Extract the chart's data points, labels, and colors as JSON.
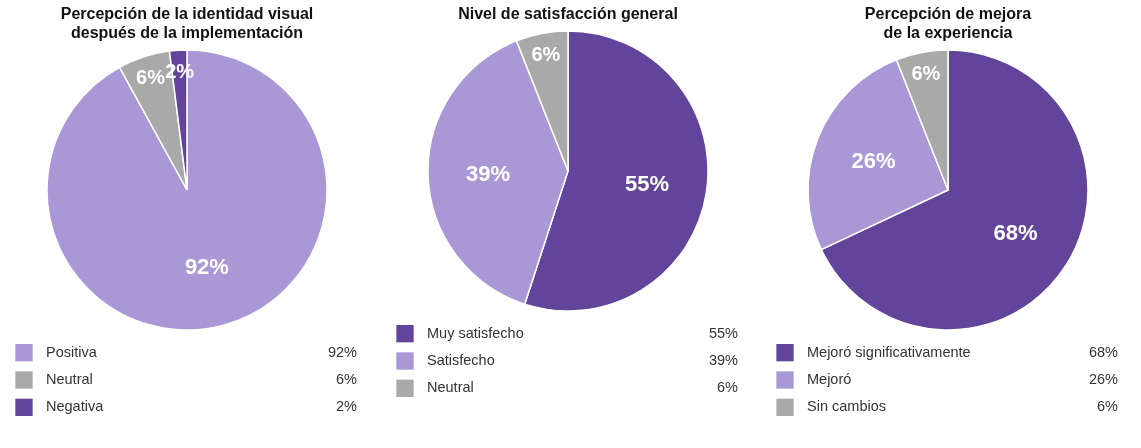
{
  "chart_data": [
    {
      "type": "pie",
      "title": "Percepción de la identidad visual\ndespués de la implementación",
      "categories": [
        "Positiva",
        "Neutral",
        "Negativa"
      ],
      "values": [
        92,
        6,
        2
      ],
      "value_labels": [
        "92%",
        "6%",
        "2%"
      ],
      "colors": [
        "#a997d6",
        "#a9a9a9",
        "#62449a"
      ],
      "legend": "bottom"
    },
    {
      "type": "pie",
      "title": "Nivel de satisfacción general",
      "categories": [
        "Muy satisfecho",
        "Satisfecho",
        "Neutral"
      ],
      "values": [
        55,
        39,
        6
      ],
      "value_labels": [
        "55%",
        "39%",
        "6%"
      ],
      "colors": [
        "#62449a",
        "#a997d6",
        "#a9a9a9"
      ],
      "legend": "bottom"
    },
    {
      "type": "pie",
      "title": "Percepción de mejora\nde la experiencia",
      "categories": [
        "Mejoró significativamente",
        "Mejoró",
        "Sin cambios"
      ],
      "values": [
        68,
        26,
        6
      ],
      "value_labels": [
        "68%",
        "26%",
        "6%"
      ],
      "colors": [
        "#62449a",
        "#a997d6",
        "#a9a9a9"
      ],
      "legend": "bottom"
    }
  ]
}
